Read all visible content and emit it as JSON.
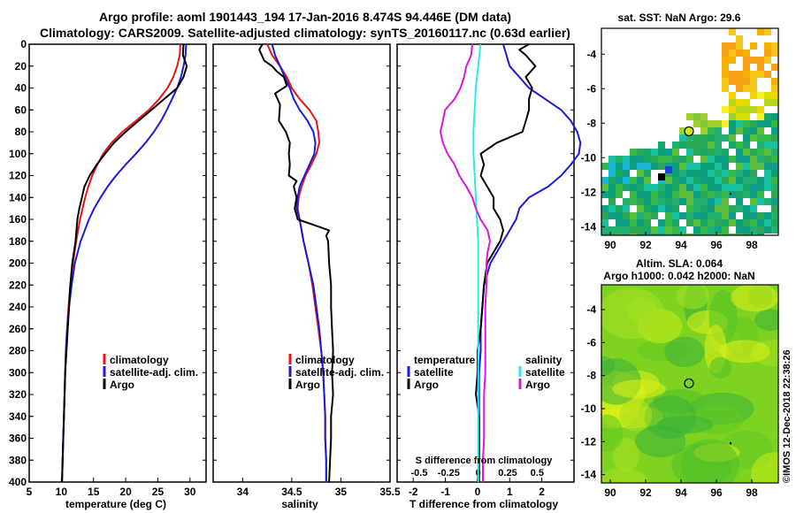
{
  "header": {
    "line1": "Argo profile: aoml 1901443_194 17-Jan-2016 8.474S 94.446E (DM data)",
    "line2": "Climatology: CARS2009. Satellite-adjusted climatology: synTS_20160117.nc (0.63d earlier)"
  },
  "colors": {
    "climatology": "#e8141a",
    "satellite": "#1a1ad8",
    "argo": "#000000",
    "sal_sat": "#33e6ee",
    "sal_argo": "#d81ad8"
  },
  "depth_axis": {
    "ticks": [
      "0",
      "20",
      "40",
      "60",
      "80",
      "100",
      "120",
      "140",
      "160",
      "180",
      "200",
      "220",
      "240",
      "260",
      "280",
      "300",
      "320",
      "340",
      "360",
      "380",
      "400"
    ],
    "range": [
      0,
      400
    ]
  },
  "chart_data": [
    {
      "id": "temperature",
      "type": "line",
      "xlabel": "temperature (deg C)",
      "xlim": [
        5,
        32.5
      ],
      "xticks": [
        "5",
        "10",
        "15",
        "20",
        "25",
        "30"
      ],
      "legend": [
        "climatology",
        "satellite-adj. clim.",
        "Argo"
      ],
      "series": [
        {
          "name": "climatology",
          "color": "#e8141a",
          "depth": [
            0,
            10,
            20,
            30,
            40,
            50,
            60,
            70,
            80,
            90,
            100,
            110,
            120,
            130,
            140,
            150,
            160,
            180,
            200,
            220,
            240,
            260,
            280,
            300,
            320,
            340,
            360,
            380,
            400
          ],
          "values": [
            28.5,
            28.4,
            28.0,
            27.4,
            26.5,
            25.2,
            23.6,
            21.6,
            19.5,
            17.8,
            16.5,
            15.6,
            14.8,
            14.2,
            13.7,
            13.3,
            12.9,
            12.3,
            11.8,
            11.4,
            11.1,
            10.9,
            10.7,
            10.6,
            10.5,
            10.4,
            10.3,
            10.2,
            10.1
          ]
        },
        {
          "name": "satellite-adj. clim.",
          "color": "#1a1ad8",
          "depth": [
            0,
            10,
            20,
            30,
            40,
            50,
            60,
            70,
            80,
            90,
            100,
            110,
            120,
            130,
            140,
            150,
            160,
            180,
            200,
            220,
            240,
            260,
            280,
            300,
            320,
            340,
            360,
            380,
            400
          ],
          "values": [
            29.4,
            29.3,
            29.0,
            28.6,
            28.0,
            27.2,
            26.4,
            25.5,
            24.4,
            23.1,
            21.6,
            20.0,
            18.5,
            17.2,
            16.1,
            15.1,
            14.3,
            13.0,
            12.1,
            11.6,
            11.2,
            10.9,
            10.7,
            10.6,
            10.5,
            10.4,
            10.3,
            10.2,
            10.1
          ]
        },
        {
          "name": "Argo",
          "color": "#000000",
          "depth": [
            0,
            10,
            20,
            30,
            40,
            50,
            60,
            70,
            80,
            90,
            100,
            110,
            120,
            130,
            140,
            150,
            160,
            180,
            200,
            220,
            240,
            260,
            280,
            300,
            320,
            340,
            360,
            380,
            400
          ],
          "values": [
            29.0,
            28.9,
            29.5,
            29.0,
            28.0,
            26.0,
            24.0,
            22.0,
            20.0,
            18.2,
            16.8,
            15.5,
            14.4,
            13.6,
            13.2,
            12.8,
            12.5,
            12.2,
            11.7,
            11.4,
            11.2,
            11.0,
            10.8,
            10.6,
            10.5,
            10.4,
            10.3,
            10.2,
            10.1
          ]
        }
      ]
    },
    {
      "id": "salinity",
      "type": "line",
      "xlabel": "salinity",
      "xlim": [
        33.7,
        35.5
      ],
      "xticks": [
        "34",
        "34.5",
        "35",
        "35.5"
      ],
      "legend": [
        "climatology",
        "satellite-adj. clim.",
        "Argo"
      ],
      "series": [
        {
          "name": "climatology",
          "color": "#e8141a",
          "depth": [
            0,
            10,
            20,
            30,
            40,
            50,
            60,
            70,
            80,
            90,
            100,
            110,
            120,
            130,
            140,
            150,
            160,
            180,
            200,
            220,
            240,
            260,
            280,
            300,
            320,
            340,
            360,
            380,
            400
          ],
          "values": [
            34.25,
            34.3,
            34.38,
            34.45,
            34.5,
            34.58,
            34.68,
            34.75,
            34.77,
            34.78,
            34.75,
            34.7,
            34.64,
            34.6,
            34.57,
            34.56,
            34.58,
            34.62,
            34.67,
            34.71,
            34.74,
            34.77,
            34.8,
            34.82,
            34.83,
            34.84,
            34.84,
            34.85,
            34.85
          ]
        },
        {
          "name": "satellite-adj. clim.",
          "color": "#1a1ad8",
          "depth": [
            0,
            10,
            20,
            30,
            40,
            50,
            60,
            70,
            80,
            90,
            100,
            110,
            120,
            130,
            140,
            150,
            160,
            180,
            200,
            220,
            240,
            260,
            280,
            300,
            320,
            340,
            360,
            380,
            400
          ],
          "values": [
            34.3,
            34.33,
            34.38,
            34.43,
            34.48,
            34.52,
            34.58,
            34.66,
            34.72,
            34.74,
            34.73,
            34.68,
            34.63,
            34.58,
            34.56,
            34.55,
            34.58,
            34.62,
            34.67,
            34.72,
            34.75,
            34.78,
            34.8,
            34.82,
            34.83,
            34.84,
            34.84,
            34.85,
            34.85
          ]
        },
        {
          "name": "Argo",
          "color": "#000000",
          "depth": [
            0,
            5,
            15,
            20,
            25,
            30,
            38,
            45,
            55,
            70,
            80,
            90,
            100,
            110,
            120,
            125,
            130,
            140,
            150,
            160,
            170,
            175,
            180,
            200,
            220,
            240,
            260,
            280,
            300,
            320,
            340,
            360,
            380,
            400
          ],
          "values": [
            34.2,
            34.17,
            34.22,
            34.3,
            34.35,
            34.42,
            34.45,
            34.33,
            34.38,
            34.37,
            34.44,
            34.48,
            34.47,
            34.48,
            34.47,
            34.55,
            34.52,
            34.55,
            34.53,
            34.56,
            34.88,
            34.85,
            34.87,
            34.88,
            34.9,
            34.9,
            34.91,
            34.92,
            34.91,
            34.92,
            34.9,
            34.9,
            34.89,
            34.88
          ]
        }
      ]
    },
    {
      "id": "difference",
      "type": "line",
      "xlabel": "T difference from climatology",
      "x2label": "S difference from climatology",
      "xlim": [
        -2.5,
        3.0
      ],
      "xticks": [
        "-2",
        "-1",
        "0",
        "1",
        "2"
      ],
      "x2lim": [
        -0.6875,
        0.8125
      ],
      "x2ticks": [
        "-0.5",
        "-0.25",
        "0",
        "0.25",
        "0.5"
      ],
      "legend_temperature_title": "temperature",
      "legend_salinity_title": "salinity",
      "legend_temperature": [
        "satellite",
        "Argo"
      ],
      "legend_salinity": [
        "satellite",
        "Argo"
      ],
      "series": [
        {
          "name": "temperature satellite",
          "color": "#1a1ad8",
          "axis": "T",
          "depth": [
            0,
            10,
            20,
            30,
            40,
            50,
            60,
            70,
            80,
            90,
            100,
            110,
            120,
            130,
            140,
            150,
            160,
            170,
            180,
            200,
            220,
            240,
            260,
            280,
            300,
            320,
            340,
            360,
            380,
            400
          ],
          "values": [
            0.8,
            0.9,
            1.0,
            1.3,
            1.6,
            2.1,
            2.6,
            2.9,
            3.1,
            3.2,
            3.15,
            2.9,
            2.6,
            2.2,
            1.6,
            1.3,
            1.2,
            1.0,
            0.8,
            0.4,
            0.2,
            0.15,
            0.1,
            0.1,
            0.05,
            0.05,
            0.05,
            0.05,
            0.05,
            0.0
          ]
        },
        {
          "name": "temperature Argo",
          "color": "#000000",
          "axis": "T",
          "depth": [
            0,
            5,
            10,
            20,
            30,
            40,
            50,
            60,
            70,
            80,
            90,
            100,
            110,
            120,
            130,
            140,
            150,
            160,
            170,
            180,
            190,
            200,
            220,
            240,
            260,
            280,
            300,
            320,
            340,
            360,
            380,
            400
          ],
          "values": [
            1.6,
            1.3,
            1.5,
            1.8,
            1.5,
            1.7,
            1.6,
            1.6,
            1.5,
            1.4,
            0.6,
            0.1,
            0.2,
            0.1,
            0.3,
            0.5,
            0.5,
            0.7,
            0.8,
            0.7,
            0.5,
            0.3,
            0.2,
            0.15,
            0.1,
            0.0,
            0.0,
            -0.05,
            0.05,
            0.05,
            0.05,
            0.05
          ]
        },
        {
          "name": "salinity satellite",
          "color": "#33e6ee",
          "axis": "S",
          "depth": [
            0,
            10,
            20,
            40,
            60,
            80,
            100,
            120,
            140,
            160,
            180,
            200,
            240,
            280,
            320,
            360,
            400
          ],
          "values": [
            0.02,
            0.01,
            0.0,
            -0.02,
            -0.03,
            -0.04,
            -0.04,
            -0.03,
            -0.02,
            -0.01,
            0.0,
            0.0,
            0.0,
            0.0,
            0.0,
            0.0,
            0.0
          ]
        },
        {
          "name": "salinity Argo",
          "color": "#d81ad8",
          "axis": "S",
          "depth": [
            0,
            10,
            20,
            30,
            40,
            50,
            60,
            70,
            80,
            90,
            100,
            110,
            120,
            130,
            140,
            150,
            160,
            170,
            180,
            190,
            200,
            220,
            240,
            260,
            280,
            300,
            320,
            340,
            360,
            380,
            400
          ],
          "values": [
            -0.05,
            -0.06,
            -0.1,
            -0.12,
            -0.15,
            -0.2,
            -0.28,
            -0.3,
            -0.32,
            -0.3,
            -0.26,
            -0.2,
            -0.16,
            -0.1,
            -0.05,
            -0.02,
            0.02,
            0.08,
            0.1,
            0.08,
            0.07,
            0.07,
            0.06,
            0.06,
            0.06,
            0.06,
            0.05,
            0.05,
            0.05,
            0.04,
            0.04
          ]
        }
      ]
    }
  ],
  "maps": [
    {
      "id": "sst_map",
      "title": "sat. SST: NaN Argo: 29.6",
      "xticks": [
        "90",
        "92",
        "94",
        "96",
        "98"
      ],
      "yticks": [
        "-4",
        "-6",
        "-8",
        "-10",
        "-12",
        "-14"
      ],
      "xlim": [
        89.5,
        99.5
      ],
      "ylim": [
        -14.5,
        -2.5
      ],
      "argo_lon": 94.45,
      "argo_lat": -8.47
    },
    {
      "id": "sla_map",
      "title_line1": "Altim. SLA: 0.064",
      "title_line2": "Argo h1000: 0.042 h2000: NaN",
      "xticks": [
        "90",
        "92",
        "94",
        "96",
        "98"
      ],
      "yticks": [
        "-4",
        "-6",
        "-8",
        "-10",
        "-12",
        "-14"
      ],
      "xlim": [
        89.5,
        99.5
      ],
      "ylim": [
        -14.5,
        -2.5
      ],
      "argo_lon": 94.45,
      "argo_lat": -8.47
    }
  ],
  "footer": {
    "credit": "©IMOS 12-Dec-2018 22:38:26"
  }
}
